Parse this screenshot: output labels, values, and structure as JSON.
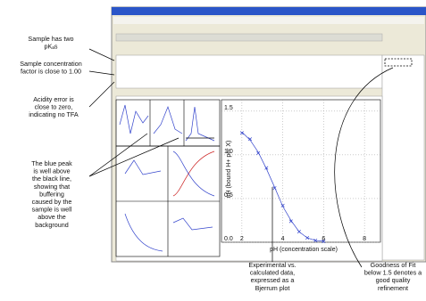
{
  "annotations": [
    {
      "lines": [
        "Sample has two",
        "pKₐs"
      ]
    },
    {
      "lines": [
        "Sample concentration",
        "factor is close to 1.00"
      ]
    },
    {
      "lines": [
        "Acidity error is",
        "close to zero,",
        "indicating no TFA"
      ]
    },
    {
      "lines": [
        "The blue peak",
        "is well above",
        "the black line,",
        "showing that",
        "buffering",
        "caused by the",
        "sample is well",
        "above the",
        "background"
      ]
    },
    {
      "lines": [
        "Experimental vs.",
        "calculated data,",
        "expressed as a",
        "Bjerrum plot"
      ]
    },
    {
      "lines": [
        "Goodness of Fit",
        "below 1.5 denotes a",
        "good quality",
        "refinement"
      ]
    }
  ],
  "bjerrum_plot": {
    "type": "line",
    "x_label": "pH (concentration scale)",
    "y_label": "nH (bound H+ per X)",
    "xlim": [
      1,
      9
    ],
    "ylim": [
      0,
      1.6
    ],
    "xticks": [
      2,
      4,
      6,
      8
    ],
    "yticks": [
      {
        "value": 0,
        "label": "0.0"
      },
      {
        "value": 0.5,
        "label": "0.5"
      },
      {
        "value": 1,
        "label": "1.0"
      },
      {
        "value": 1.5,
        "label": "1.5"
      }
    ],
    "x": [
      2.0,
      2.4,
      2.8,
      3.2,
      3.6,
      4.0,
      4.4,
      4.8,
      5.2,
      5.6,
      6.0
    ],
    "series": [
      {
        "color": "#3344cc",
        "marker": "cross",
        "values": [
          1.25,
          1.18,
          1.02,
          0.85,
          0.62,
          0.42,
          0.24,
          0.12,
          0.05,
          0.02,
          0.01
        ]
      },
      {
        "color": "#3344cc",
        "marker": "none",
        "values": [
          1.26,
          1.17,
          1.03,
          0.84,
          0.63,
          0.41,
          0.25,
          0.12,
          0.05,
          0.02,
          0.01
        ]
      }
    ]
  }
}
